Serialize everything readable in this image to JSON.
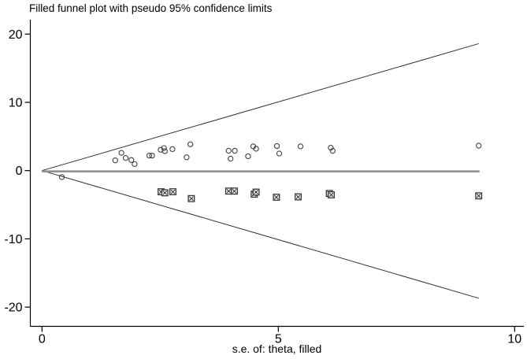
{
  "chart_data": {
    "type": "scatter",
    "title": "Filled funnel plot with pseudo 95% confidence limits",
    "xlabel": "s.e. of: theta, filled",
    "ylabel": "",
    "x_ticks": [
      0,
      5,
      10
    ],
    "y_ticks": [
      20,
      10,
      0,
      -10,
      -20
    ],
    "xlim": [
      -0.26,
      10.2
    ],
    "ylim": [
      -22.8,
      22.1
    ],
    "grid": "off",
    "legend": "none",
    "colors": {
      "axis": "#000000",
      "marker_stroke": "#404040",
      "limit_line": "#303030",
      "center_line": "#909090",
      "background": "#ffffff"
    },
    "funnel": {
      "center_effect": 0,
      "se_max": 9.24,
      "pseudo_ci_upper_at_se_max": 18.6,
      "pseudo_ci_lower_at_se_max": -18.7
    },
    "series": [
      {
        "name": "open-circle-points (observed studies, theta)",
        "marker": "open-circle",
        "points": [
          [
            0.42,
            -0.95
          ],
          [
            1.55,
            1.5
          ],
          [
            1.68,
            2.6
          ],
          [
            1.77,
            1.85
          ],
          [
            1.89,
            1.55
          ],
          [
            1.96,
            0.95
          ],
          [
            2.27,
            2.2
          ],
          [
            2.33,
            2.2
          ],
          [
            2.51,
            3.05
          ],
          [
            2.58,
            3.3
          ],
          [
            2.6,
            2.85
          ],
          [
            2.76,
            3.15
          ],
          [
            3.06,
            1.95
          ],
          [
            3.14,
            3.85
          ],
          [
            3.95,
            2.9
          ],
          [
            3.99,
            1.75
          ],
          [
            4.08,
            2.9
          ],
          [
            4.36,
            2.1
          ],
          [
            4.47,
            3.55
          ],
          [
            4.53,
            3.2
          ],
          [
            4.97,
            3.6
          ],
          [
            5.02,
            2.5
          ],
          [
            5.47,
            3.55
          ],
          [
            6.11,
            3.35
          ],
          [
            6.15,
            2.9
          ],
          [
            9.24,
            3.65
          ]
        ]
      },
      {
        "name": "boxed-x-points (filled / imputed studies)",
        "marker": "boxed-x-square",
        "points": [
          [
            2.52,
            -3.1
          ],
          [
            2.6,
            -3.25
          ],
          [
            2.77,
            -3.1
          ],
          [
            3.16,
            -4.1
          ],
          [
            3.95,
            -3.0
          ],
          [
            4.07,
            -3.0
          ],
          [
            4.49,
            -3.45
          ],
          [
            4.53,
            -3.15
          ],
          [
            4.96,
            -3.9
          ],
          [
            5.42,
            -3.85
          ],
          [
            6.08,
            -3.35
          ],
          [
            6.12,
            -3.55
          ],
          [
            9.24,
            -3.7
          ]
        ]
      }
    ]
  }
}
